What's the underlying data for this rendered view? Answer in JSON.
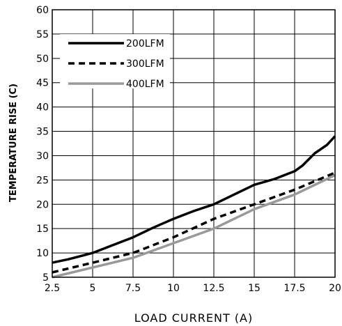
{
  "chart_data": {
    "type": "line",
    "xlabel": "LOAD CURRENT (A)",
    "ylabel": "TEMPERATURE RISE (C)",
    "xlim": [
      2.5,
      20
    ],
    "ylim": [
      5,
      60
    ],
    "xticks": [
      "2.5",
      "5",
      "7.5",
      "10",
      "12.5",
      "15",
      "17.5",
      "20"
    ],
    "yticks": [
      "5",
      "10",
      "15",
      "20",
      "25",
      "30",
      "35",
      "40",
      "45",
      "50",
      "55",
      "60"
    ],
    "grid": true,
    "legend_position": "top-left",
    "series": [
      {
        "name": "200LFM",
        "color": "#000000",
        "style": "solid",
        "x": [
          2.5,
          3.5,
          5,
          6.25,
          7.5,
          8.75,
          10,
          11.25,
          12.5,
          13.75,
          15,
          16.25,
          17.5,
          18,
          18.75,
          19.5,
          20
        ],
        "y": [
          8,
          8.7,
          10,
          11.6,
          13.2,
          15.2,
          17,
          18.6,
          20,
          22,
          24,
          25.2,
          26.8,
          28,
          30.5,
          32.2,
          34
        ]
      },
      {
        "name": "300LFM",
        "color": "#000000",
        "style": "dashed",
        "x": [
          2.5,
          5,
          7.5,
          10,
          12.5,
          15,
          17.5,
          20
        ],
        "y": [
          6,
          8,
          10,
          13.2,
          17,
          20,
          23,
          26.5
        ]
      },
      {
        "name": "400LFM",
        "color": "#999999",
        "style": "solid",
        "x": [
          2.5,
          5,
          7.5,
          10,
          12.5,
          15,
          17.5,
          20
        ],
        "y": [
          5,
          7,
          9,
          12,
          15,
          19,
          22,
          26
        ]
      }
    ]
  }
}
